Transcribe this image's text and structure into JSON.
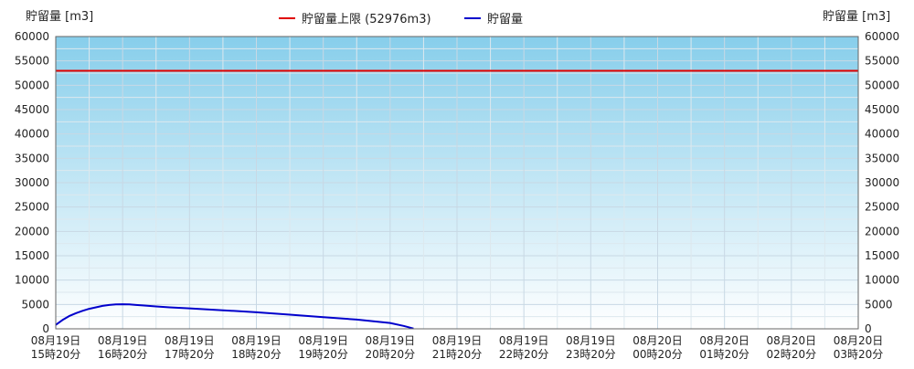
{
  "chart_data": {
    "type": "line",
    "y_axis_label_left": "貯留量 [m3]",
    "y_axis_label_right": "貯留量 [m3]",
    "ylim": [
      0,
      60000
    ],
    "y_ticks": [
      0,
      5000,
      10000,
      15000,
      20000,
      25000,
      30000,
      35000,
      40000,
      45000,
      50000,
      55000,
      60000
    ],
    "x_ticks": [
      [
        "08月19日",
        "15時20分"
      ],
      [
        "08月19日",
        "16時20分"
      ],
      [
        "08月19日",
        "17時20分"
      ],
      [
        "08月19日",
        "18時20分"
      ],
      [
        "08月19日",
        "19時20分"
      ],
      [
        "08月19日",
        "20時20分"
      ],
      [
        "08月19日",
        "21時20分"
      ],
      [
        "08月19日",
        "22時20分"
      ],
      [
        "08月19日",
        "23時20分"
      ],
      [
        "08月20日",
        "00時20分"
      ],
      [
        "08月20日",
        "01時20分"
      ],
      [
        "08月20日",
        "02時20分"
      ],
      [
        "08月20日",
        "03時20分"
      ]
    ],
    "grid": true,
    "legend_position": "top-center",
    "limit": {
      "name": "貯留量上限 (52976m3)",
      "value": 52976,
      "color": "#e00000"
    },
    "series": [
      {
        "name": "貯留量",
        "color": "#0000cc",
        "x_hours": [
          0,
          0.1,
          0.2,
          0.3,
          0.4,
          0.5,
          0.6,
          0.7,
          0.8,
          0.9,
          1.0,
          1.1,
          1.2,
          1.3,
          1.5,
          1.7,
          2.0,
          2.5,
          3.0,
          3.5,
          4.0,
          4.5,
          5.0,
          5.2,
          5.35
        ],
        "values": [
          800,
          1800,
          2600,
          3200,
          3700,
          4100,
          4400,
          4700,
          4900,
          5000,
          5050,
          5000,
          4900,
          4800,
          4600,
          4400,
          4200,
          3800,
          3400,
          2900,
          2400,
          1900,
          1200,
          600,
          50
        ]
      }
    ]
  }
}
